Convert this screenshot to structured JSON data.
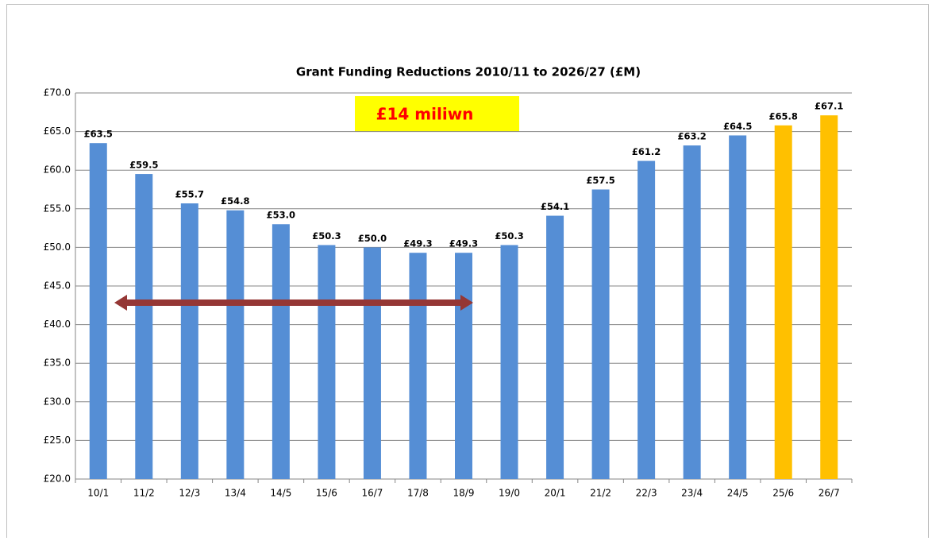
{
  "chart_data": {
    "type": "bar",
    "title": "Grant Funding Reductions 2010/11 to 2026/27 (£M)",
    "annotation": "£14 miliwn",
    "categories": [
      "10/1",
      "11/2",
      "12/3",
      "13/4",
      "14/5",
      "15/6",
      "16/7",
      "17/8",
      "18/9",
      "19/0",
      "20/1",
      "21/2",
      "22/3",
      "23/4",
      "24/5",
      "25/6",
      "26/7"
    ],
    "values": [
      63.5,
      59.5,
      55.7,
      54.8,
      53.0,
      50.3,
      50.0,
      49.3,
      49.3,
      50.3,
      54.1,
      57.5,
      61.2,
      63.2,
      64.5,
      65.8,
      67.1
    ],
    "value_labels": [
      "£63.5",
      "£59.5",
      "£55.7",
      "£54.8",
      "£53.0",
      "£50.3",
      "£50.0",
      "£49.3",
      "£49.3",
      "£50.3",
      "£54.1",
      "£57.5",
      "£61.2",
      "£63.2",
      "£64.5",
      "£65.8",
      "£67.1"
    ],
    "colors": [
      "#558ed5",
      "#558ed5",
      "#558ed5",
      "#558ed5",
      "#558ed5",
      "#558ed5",
      "#558ed5",
      "#558ed5",
      "#558ed5",
      "#558ed5",
      "#558ed5",
      "#558ed5",
      "#558ed5",
      "#558ed5",
      "#558ed5",
      "#ffc000",
      "#ffc000"
    ],
    "ylim": [
      20,
      70
    ],
    "yticks": [
      {
        "value": 20,
        "label": "£20.0"
      },
      {
        "value": 25,
        "label": "£25.0"
      },
      {
        "value": 30,
        "label": "£30.0"
      },
      {
        "value": 35,
        "label": "£35.0"
      },
      {
        "value": 40,
        "label": "£40.0"
      },
      {
        "value": 45,
        "label": "£45.0"
      },
      {
        "value": 50,
        "label": "£50.0"
      },
      {
        "value": 55,
        "label": "£55.0"
      },
      {
        "value": 60,
        "label": "£60.0"
      },
      {
        "value": 65,
        "label": "£65.0"
      },
      {
        "value": 70,
        "label": "£70.0"
      }
    ],
    "grid": true
  }
}
